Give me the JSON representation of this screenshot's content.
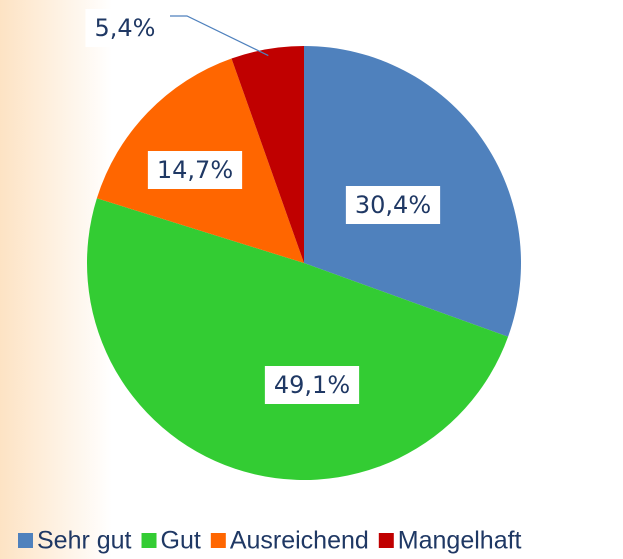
{
  "chart_data": {
    "type": "pie",
    "categories": [
      "Sehr gut",
      "Gut",
      "Ausreichend",
      "Mangelhaft"
    ],
    "values": [
      30.4,
      49.1,
      14.7,
      5.4
    ],
    "value_labels": [
      "30,4%",
      "49,1%",
      "14,7%",
      "5,4%"
    ],
    "colors": [
      "#4f81bd",
      "#33cc33",
      "#ff6600",
      "#c00000"
    ],
    "legend": "bottom"
  }
}
